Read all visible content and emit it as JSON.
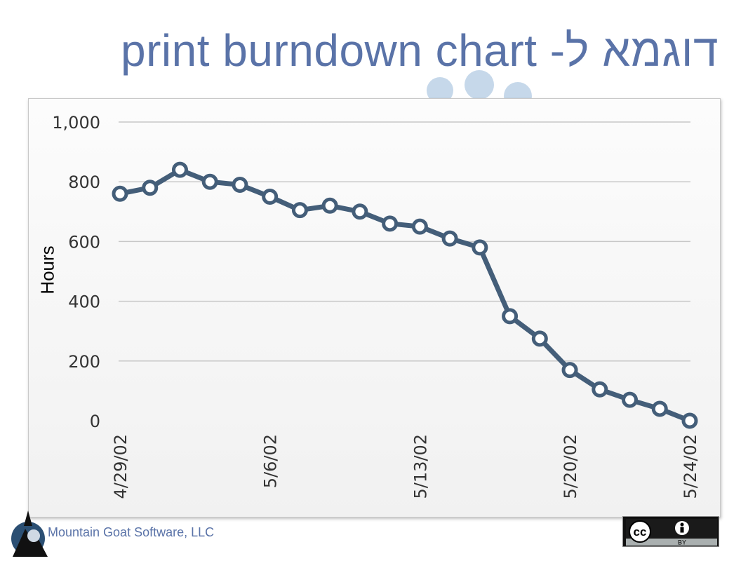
{
  "slide": {
    "title_english": "print burndown chart",
    "title_hebrew": "דוגמא ל-",
    "company": "Mountain Goat Software, LLC",
    "license_badge_text": "BY"
  },
  "chart_data": {
    "type": "line",
    "title": "",
    "xlabel": "",
    "ylabel": "Hours",
    "ylim": [
      0,
      1000
    ],
    "yticks": [
      0,
      200,
      400,
      600,
      800,
      1000
    ],
    "ytick_labels": [
      "0",
      "200",
      "400",
      "600",
      "800",
      "1,000"
    ],
    "xtick_labels": [
      {
        "index": 0,
        "label": "4/29/02"
      },
      {
        "index": 5,
        "label": "5/6/02"
      },
      {
        "index": 10,
        "label": "5/13/02"
      },
      {
        "index": 15,
        "label": "5/20/02"
      },
      {
        "index": 19,
        "label": "5/24/02"
      }
    ],
    "grid": true,
    "series": [
      {
        "values": [
          760,
          780,
          840,
          800,
          790,
          750,
          705,
          720,
          700,
          660,
          650,
          610,
          580,
          350,
          275,
          170,
          105,
          70,
          40,
          0
        ]
      }
    ],
    "colors": {
      "line": "#445e79",
      "marker_fill": "#ffffff",
      "grid": "#c8c8c8"
    }
  },
  "icons": {
    "logo": "mountain-goat-logo",
    "license": "creative-commons-by-icon"
  }
}
